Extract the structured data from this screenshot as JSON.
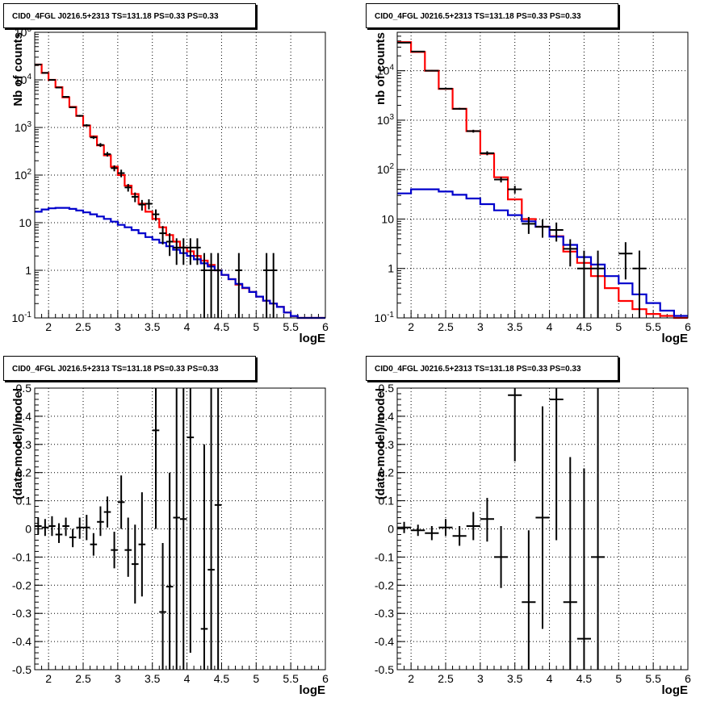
{
  "chart_data": [
    {
      "type": "step",
      "title": "CID0_4FGL J0216.5+2313 TS=131.18 PS=0.33 PS=0.33",
      "xlabel": "logE",
      "ylabel": "Nb of counts",
      "xlim": [
        1.8,
        6.0
      ],
      "ylim": [
        0.1,
        100000
      ],
      "yscale": "log",
      "grid": true,
      "xticks": [
        "2",
        "2.5",
        "3",
        "3.5",
        "4",
        "4.5",
        "5",
        "5.5",
        "6"
      ],
      "yticks": [
        "10^-1",
        "1",
        "10",
        "10^2",
        "10^3",
        "10^4",
        "10^5"
      ],
      "bin_edges": [
        1.8,
        1.9,
        2.0,
        2.1,
        2.2,
        2.3,
        2.4,
        2.5,
        2.6,
        2.7,
        2.8,
        2.9,
        3.0,
        3.1,
        3.2,
        3.3,
        3.4,
        3.5,
        3.6,
        3.7,
        3.8,
        3.9,
        4.0,
        4.1,
        4.2,
        4.3,
        4.4,
        4.5,
        4.6,
        4.7,
        4.8,
        4.9,
        5.0,
        5.1,
        5.2,
        5.3,
        5.4,
        5.5,
        5.6,
        5.7,
        5.8,
        5.9,
        6.0
      ],
      "series": [
        {
          "color": "#ff0000",
          "values": [
            21000,
            14000,
            10000,
            7000,
            4300,
            2700,
            1750,
            1100,
            650,
            420,
            260,
            150,
            100,
            60,
            40,
            25,
            17,
            12,
            8,
            5.5,
            4,
            3,
            2.5,
            2,
            1.6,
            1.3,
            1,
            0.8,
            0.65,
            0.5,
            0.42,
            0.35,
            0.28,
            0.23,
            0.2,
            0.17,
            0.13,
            0.11,
            0.1,
            0.1,
            0.1,
            0.1
          ]
        },
        {
          "color": "#0000cc",
          "values": [
            17,
            19,
            20,
            20.5,
            20.5,
            19.5,
            18,
            16.5,
            15,
            13.5,
            12,
            10.5,
            9,
            8,
            7,
            6,
            5,
            4.4,
            3.8,
            3.2,
            2.7,
            2.3,
            2,
            1.7,
            1.4,
            1.2,
            1,
            0.8,
            0.65,
            0.52,
            0.43,
            0.35,
            0.28,
            0.23,
            0.2,
            0.17,
            0.13,
            0.11,
            0.1,
            0.1,
            0.1,
            0.1
          ]
        }
      ],
      "points": [
        {
          "x": 1.85,
          "y": 21000,
          "xerr": 0.05,
          "ylo": 20500,
          "yhi": 21500
        },
        {
          "x": 1.95,
          "y": 14000,
          "xerr": 0.05,
          "ylo": 13700,
          "yhi": 14300
        },
        {
          "x": 2.05,
          "y": 10000,
          "xerr": 0.05,
          "ylo": 9700,
          "yhi": 10300
        },
        {
          "x": 2.15,
          "y": 6900,
          "xerr": 0.05,
          "ylo": 6700,
          "yhi": 7100
        },
        {
          "x": 2.25,
          "y": 4400,
          "xerr": 0.05,
          "ylo": 4270,
          "yhi": 4530
        },
        {
          "x": 2.35,
          "y": 2650,
          "xerr": 0.05,
          "ylo": 2550,
          "yhi": 2750
        },
        {
          "x": 2.45,
          "y": 1760,
          "xerr": 0.05,
          "ylo": 1680,
          "yhi": 1840
        },
        {
          "x": 2.55,
          "y": 1110,
          "xerr": 0.05,
          "ylo": 1050,
          "yhi": 1170
        },
        {
          "x": 2.65,
          "y": 620,
          "xerr": 0.05,
          "ylo": 575,
          "yhi": 665
        },
        {
          "x": 2.75,
          "y": 430,
          "xerr": 0.05,
          "ylo": 390,
          "yhi": 470
        },
        {
          "x": 2.85,
          "y": 275,
          "xerr": 0.05,
          "ylo": 245,
          "yhi": 305
        },
        {
          "x": 2.95,
          "y": 140,
          "xerr": 0.05,
          "ylo": 120,
          "yhi": 160
        },
        {
          "x": 3.05,
          "y": 110,
          "xerr": 0.05,
          "ylo": 90,
          "yhi": 130
        },
        {
          "x": 3.15,
          "y": 55,
          "xerr": 0.05,
          "ylo": 45,
          "yhi": 65
        },
        {
          "x": 3.25,
          "y": 35,
          "xerr": 0.05,
          "ylo": 27,
          "yhi": 43
        },
        {
          "x": 3.35,
          "y": 24,
          "xerr": 0.05,
          "ylo": 18,
          "yhi": 30
        },
        {
          "x": 3.45,
          "y": 25,
          "xerr": 0.05,
          "ylo": 19,
          "yhi": 31
        },
        {
          "x": 3.55,
          "y": 15,
          "xerr": 0.05,
          "ylo": 11,
          "yhi": 19
        },
        {
          "x": 3.65,
          "y": 6,
          "xerr": 0.05,
          "ylo": 3.5,
          "yhi": 8.5
        },
        {
          "x": 3.75,
          "y": 4,
          "xerr": 0.05,
          "ylo": 2,
          "yhi": 6
        },
        {
          "x": 3.85,
          "y": 3,
          "xerr": 0.05,
          "ylo": 1.3,
          "yhi": 4.7
        },
        {
          "x": 3.95,
          "y": 3,
          "xerr": 0.05,
          "ylo": 1.3,
          "yhi": 4.7
        },
        {
          "x": 4.05,
          "y": 3,
          "xerr": 0.05,
          "ylo": 1.3,
          "yhi": 4.7
        },
        {
          "x": 4.15,
          "y": 3,
          "xerr": 0.05,
          "ylo": 1.3,
          "yhi": 4.7
        },
        {
          "x": 4.25,
          "y": 1,
          "xerr": 0.05,
          "ylo": 0.1,
          "yhi": 2.3
        },
        {
          "x": 4.35,
          "y": 1,
          "xerr": 0.05,
          "ylo": 0.1,
          "yhi": 2.3
        },
        {
          "x": 4.45,
          "y": 1,
          "xerr": 0.05,
          "ylo": 0.1,
          "yhi": 2.3
        },
        {
          "x": 4.75,
          "y": 1,
          "xerr": 0.05,
          "ylo": 0.1,
          "yhi": 2.3
        },
        {
          "x": 5.15,
          "y": 1,
          "xerr": 0.05,
          "ylo": 0.1,
          "yhi": 2.3
        },
        {
          "x": 5.25,
          "y": 1,
          "xerr": 0.05,
          "ylo": 0.1,
          "yhi": 2.3
        }
      ]
    },
    {
      "type": "step",
      "title": "CID0_4FGL J0216.5+2313 TS=131.18 PS=0.33 PS=0.33",
      "xlabel": "logE",
      "ylabel": "nb of counts",
      "xlim": [
        1.8,
        6.0
      ],
      "ylim": [
        0.1,
        60000
      ],
      "yscale": "log",
      "grid": true,
      "xticks": [
        "2",
        "2.5",
        "3",
        "3.5",
        "4",
        "4.5",
        "5",
        "5.5",
        "6"
      ],
      "yticks": [
        "10^-1",
        "1",
        "10",
        "10^2",
        "10^3",
        "10^4"
      ],
      "bin_edges": [
        1.8,
        2.0,
        2.2,
        2.4,
        2.6,
        2.8,
        3.0,
        3.2,
        3.4,
        3.6,
        3.8,
        4.0,
        4.2,
        4.4,
        4.6,
        4.8,
        5.0,
        5.2,
        5.4,
        5.6,
        5.8,
        6.0
      ],
      "series": [
        {
          "color": "#ff0000",
          "values": [
            38000,
            24000,
            10000,
            4300,
            1700,
            600,
            210,
            70,
            25,
            10,
            7,
            4.5,
            2.2,
            1.3,
            0.7,
            0.4,
            0.22,
            0.15,
            0.12,
            0.11,
            0.1
          ]
        },
        {
          "color": "#0000cc",
          "values": [
            33,
            40,
            40,
            36,
            31,
            26,
            20,
            15,
            12,
            9,
            7,
            4.4,
            3,
            1.7,
            1.2,
            0.7,
            0.5,
            0.3,
            0.2,
            0.14,
            0.11
          ]
        }
      ],
      "points": [
        {
          "x": 1.9,
          "y": 37000,
          "xerr": 0.1,
          "ylo": 36500,
          "yhi": 37500
        },
        {
          "x": 2.1,
          "y": 24500,
          "xerr": 0.1,
          "ylo": 24000,
          "yhi": 25000
        },
        {
          "x": 2.3,
          "y": 10000,
          "xerr": 0.1,
          "ylo": 9700,
          "yhi": 10300
        },
        {
          "x": 2.5,
          "y": 4350,
          "xerr": 0.1,
          "ylo": 4200,
          "yhi": 4500
        },
        {
          "x": 2.7,
          "y": 1700,
          "xerr": 0.1,
          "ylo": 1630,
          "yhi": 1770
        },
        {
          "x": 2.9,
          "y": 600,
          "xerr": 0.1,
          "ylo": 560,
          "yhi": 640
        },
        {
          "x": 3.1,
          "y": 215,
          "xerr": 0.1,
          "ylo": 195,
          "yhi": 235
        },
        {
          "x": 3.3,
          "y": 63,
          "xerr": 0.1,
          "ylo": 55,
          "yhi": 71
        },
        {
          "x": 3.5,
          "y": 40,
          "xerr": 0.1,
          "ylo": 33,
          "yhi": 47
        },
        {
          "x": 3.7,
          "y": 8,
          "xerr": 0.1,
          "ylo": 5,
          "yhi": 11
        },
        {
          "x": 3.9,
          "y": 7,
          "xerr": 0.1,
          "ylo": 4.2,
          "yhi": 9.8
        },
        {
          "x": 4.1,
          "y": 6,
          "xerr": 0.1,
          "ylo": 3.5,
          "yhi": 8.5
        },
        {
          "x": 4.3,
          "y": 2.5,
          "xerr": 0.1,
          "ylo": 1.1,
          "yhi": 3.9
        },
        {
          "x": 4.5,
          "y": 1,
          "xerr": 0.1,
          "ylo": 0.1,
          "yhi": 2.3
        },
        {
          "x": 4.7,
          "y": 1,
          "xerr": 0.1,
          "ylo": 0.1,
          "yhi": 2.3
        },
        {
          "x": 5.1,
          "y": 2,
          "xerr": 0.1,
          "ylo": 0.6,
          "yhi": 3.4
        },
        {
          "x": 5.3,
          "y": 1,
          "xerr": 0.1,
          "ylo": 0.1,
          "yhi": 2.3
        }
      ]
    },
    {
      "type": "scatter",
      "title": "CID0_4FGL J0216.5+2313 TS=131.18 PS=0.33 PS=0.33",
      "xlabel": "logE",
      "ylabel": "(data-model)/model",
      "xlim": [
        1.8,
        6.0
      ],
      "ylim": [
        -0.5,
        0.5
      ],
      "grid": true,
      "xticks": [
        "2",
        "2.5",
        "3",
        "3.5",
        "4",
        "4.5",
        "5",
        "5.5",
        "6"
      ],
      "yticks": [
        "-0.5",
        "-0.4",
        "-0.3",
        "-0.2",
        "-0.1",
        "0",
        "0.1",
        "0.2",
        "0.3",
        "0.4",
        "0.5"
      ],
      "points": [
        {
          "x": 1.85,
          "y": 0.01,
          "xerr": 0.05,
          "ylo": -0.02,
          "yhi": 0.04
        },
        {
          "x": 1.95,
          "y": 0.005,
          "xerr": 0.05,
          "ylo": -0.025,
          "yhi": 0.035
        },
        {
          "x": 2.05,
          "y": 0.01,
          "xerr": 0.05,
          "ylo": -0.025,
          "yhi": 0.045
        },
        {
          "x": 2.15,
          "y": -0.02,
          "xerr": 0.05,
          "ylo": -0.05,
          "yhi": 0.02
        },
        {
          "x": 2.25,
          "y": 0.01,
          "xerr": 0.05,
          "ylo": -0.025,
          "yhi": 0.04
        },
        {
          "x": 2.35,
          "y": -0.03,
          "xerr": 0.05,
          "ylo": -0.065,
          "yhi": 0.0
        },
        {
          "x": 2.45,
          "y": 0.005,
          "xerr": 0.05,
          "ylo": -0.035,
          "yhi": 0.04
        },
        {
          "x": 2.55,
          "y": 0.005,
          "xerr": 0.05,
          "ylo": -0.04,
          "yhi": 0.05
        },
        {
          "x": 2.65,
          "y": -0.055,
          "xerr": 0.05,
          "ylo": -0.095,
          "yhi": -0.015
        },
        {
          "x": 2.75,
          "y": 0.025,
          "xerr": 0.05,
          "ylo": -0.025,
          "yhi": 0.08
        },
        {
          "x": 2.85,
          "y": 0.06,
          "xerr": 0.05,
          "ylo": 0.005,
          "yhi": 0.115
        },
        {
          "x": 2.95,
          "y": -0.075,
          "xerr": 0.05,
          "ylo": -0.14,
          "yhi": -0.01
        },
        {
          "x": 3.05,
          "y": 0.095,
          "xerr": 0.05,
          "ylo": 0.0,
          "yhi": 0.19
        },
        {
          "x": 3.15,
          "y": -0.075,
          "xerr": 0.05,
          "ylo": -0.17,
          "yhi": 0.04
        },
        {
          "x": 3.25,
          "y": -0.125,
          "xerr": 0.05,
          "ylo": -0.265,
          "yhi": 0.015
        },
        {
          "x": 3.35,
          "y": -0.055,
          "xerr": 0.05,
          "ylo": -0.24,
          "yhi": 0.13
        },
        {
          "x": 3.55,
          "y": 0.35,
          "xerr": 0.05,
          "ylo": 0.0,
          "yhi": 0.5
        },
        {
          "x": 3.65,
          "y": -0.295,
          "xerr": 0.05,
          "ylo": -0.5,
          "yhi": -0.05
        },
        {
          "x": 3.75,
          "y": -0.205,
          "xerr": 0.05,
          "ylo": -0.5,
          "yhi": 0.2
        },
        {
          "x": 3.85,
          "y": 0.04,
          "xerr": 0.05,
          "ylo": -0.5,
          "yhi": 0.5
        },
        {
          "x": 3.95,
          "y": 0.035,
          "xerr": 0.05,
          "ylo": -0.5,
          "yhi": 0.5
        },
        {
          "x": 4.05,
          "y": 0.325,
          "xerr": 0.05,
          "ylo": -0.44,
          "yhi": 0.5
        },
        {
          "x": 4.25,
          "y": -0.355,
          "xerr": 0.05,
          "ylo": -0.5,
          "yhi": 0.3
        },
        {
          "x": 4.35,
          "y": -0.145,
          "xerr": 0.05,
          "ylo": -0.5,
          "yhi": 0.5
        },
        {
          "x": 4.45,
          "y": 0.085,
          "xerr": 0.05,
          "ylo": -0.5,
          "yhi": 0.5
        }
      ]
    },
    {
      "type": "scatter",
      "title": "CID0_4FGL J0216.5+2313 TS=131.18 PS=0.33 PS=0.33",
      "xlabel": "logE",
      "ylabel": "(data-model)/model",
      "xlim": [
        1.8,
        6.0
      ],
      "ylim": [
        -0.5,
        0.5
      ],
      "grid": true,
      "xticks": [
        "2",
        "2.5",
        "3",
        "3.5",
        "4",
        "4.5",
        "5",
        "5.5",
        "6"
      ],
      "yticks": [
        "-0.5",
        "-0.4",
        "-0.3",
        "-0.2",
        "-0.1",
        "0",
        "0.1",
        "0.2",
        "0.3",
        "0.4",
        "0.5"
      ],
      "points": [
        {
          "x": 1.9,
          "y": 0.005,
          "xerr": 0.1,
          "ylo": -0.015,
          "yhi": 0.025
        },
        {
          "x": 2.1,
          "y": -0.005,
          "xerr": 0.1,
          "ylo": -0.025,
          "yhi": 0.015
        },
        {
          "x": 2.3,
          "y": -0.015,
          "xerr": 0.1,
          "ylo": -0.04,
          "yhi": 0.01
        },
        {
          "x": 2.5,
          "y": 0.005,
          "xerr": 0.1,
          "ylo": -0.025,
          "yhi": 0.035
        },
        {
          "x": 2.7,
          "y": -0.025,
          "xerr": 0.1,
          "ylo": -0.06,
          "yhi": 0.01
        },
        {
          "x": 2.9,
          "y": 0.01,
          "xerr": 0.1,
          "ylo": -0.04,
          "yhi": 0.06
        },
        {
          "x": 3.1,
          "y": 0.035,
          "xerr": 0.1,
          "ylo": -0.045,
          "yhi": 0.11
        },
        {
          "x": 3.3,
          "y": -0.1,
          "xerr": 0.1,
          "ylo": -0.21,
          "yhi": 0.01
        },
        {
          "x": 3.5,
          "y": 0.475,
          "xerr": 0.1,
          "ylo": 0.24,
          "yhi": 0.5
        },
        {
          "x": 3.7,
          "y": -0.26,
          "xerr": 0.1,
          "ylo": -0.5,
          "yhi": -0.005
        },
        {
          "x": 3.9,
          "y": 0.04,
          "xerr": 0.1,
          "ylo": -0.355,
          "yhi": 0.435
        },
        {
          "x": 4.1,
          "y": 0.46,
          "xerr": 0.1,
          "ylo": -0.04,
          "yhi": 0.5
        },
        {
          "x": 4.3,
          "y": -0.26,
          "xerr": 0.1,
          "ylo": -0.5,
          "yhi": 0.255
        },
        {
          "x": 4.5,
          "y": -0.39,
          "xerr": 0.1,
          "ylo": -0.5,
          "yhi": 0.215
        },
        {
          "x": 4.7,
          "y": -0.1,
          "xerr": 0.1,
          "ylo": -0.5,
          "yhi": 0.5
        }
      ]
    }
  ]
}
